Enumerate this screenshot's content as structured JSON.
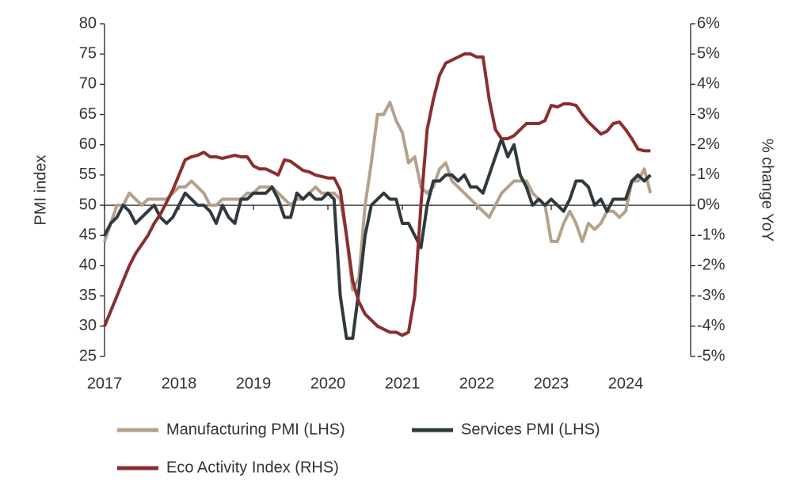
{
  "chart_data": {
    "type": "line",
    "y_label": "PMI index",
    "y2_label": "% change YoY",
    "categories": [
      "2017",
      null,
      null,
      null,
      null,
      null,
      null,
      null,
      null,
      null,
      null,
      null,
      "2018",
      null,
      null,
      null,
      null,
      null,
      null,
      null,
      null,
      null,
      null,
      null,
      "2019",
      null,
      null,
      null,
      null,
      null,
      null,
      null,
      null,
      null,
      null,
      null,
      "2020",
      null,
      null,
      null,
      null,
      null,
      null,
      null,
      null,
      null,
      null,
      null,
      "2021",
      null,
      null,
      null,
      null,
      null,
      null,
      null,
      null,
      null,
      null,
      null,
      "2022",
      null,
      null,
      null,
      null,
      null,
      null,
      null,
      null,
      null,
      null,
      null,
      "2023",
      null,
      null,
      null,
      null,
      null,
      null,
      null,
      null,
      null,
      null,
      null,
      "2024",
      null,
      null,
      null,
      null
    ],
    "ylim": [
      25,
      80
    ],
    "yticks": [
      25,
      30,
      35,
      40,
      45,
      50,
      55,
      60,
      65,
      70,
      75,
      80
    ],
    "y2lim": [
      -5,
      6
    ],
    "y2ticks": [
      {
        "value": -5,
        "label": "-5%"
      },
      {
        "value": -4,
        "label": "-4%"
      },
      {
        "value": -3,
        "label": "-3%"
      },
      {
        "value": -2,
        "label": "-2%"
      },
      {
        "value": -1,
        "label": "-1%"
      },
      {
        "value": 0,
        "label": "0%"
      },
      {
        "value": 1,
        "label": "1%"
      },
      {
        "value": 2,
        "label": "2%"
      },
      {
        "value": 3,
        "label": "3%"
      },
      {
        "value": 4,
        "label": "4%"
      },
      {
        "value": 5,
        "label": "5%"
      },
      {
        "value": 6,
        "label": "6%"
      }
    ],
    "legend": "bottom",
    "series": [
      {
        "name": "Manufacturing PMI (LHS)",
        "color": "#b5a18c",
        "values": [
          44,
          47,
          50,
          50,
          52,
          51,
          50,
          51,
          51,
          51,
          51,
          52,
          53,
          53,
          54,
          53,
          52,
          50,
          50,
          51,
          51,
          51,
          51,
          52,
          52,
          53,
          53,
          53,
          52,
          51,
          50,
          51,
          51,
          52,
          53,
          52,
          52,
          52,
          51,
          45,
          36,
          38,
          50,
          57,
          65,
          65,
          67,
          64,
          62,
          57,
          58,
          53,
          52,
          53,
          56,
          57,
          54,
          53,
          52,
          51,
          50,
          49,
          48,
          50,
          52,
          53,
          54,
          54,
          54,
          52,
          51,
          50,
          44,
          44,
          47,
          49,
          47,
          44,
          47,
          46,
          47,
          49,
          49,
          48,
          49,
          54,
          54,
          56,
          52
        ]
      },
      {
        "name": "Services PMI (LHS)",
        "color": "#2f3a3e",
        "values": [
          45,
          47,
          48,
          50,
          49,
          47,
          48,
          49,
          50,
          48,
          47,
          48,
          50,
          52,
          51,
          50,
          50,
          49,
          47,
          50,
          48,
          47,
          51,
          51,
          52,
          52,
          52,
          53,
          51,
          48,
          48,
          52,
          51,
          52,
          51,
          51,
          52,
          51,
          35,
          28,
          28,
          36,
          45,
          50,
          51,
          52,
          51,
          51,
          47,
          47,
          45,
          43,
          50,
          54,
          54,
          55,
          55,
          54,
          55,
          53,
          53,
          52,
          55,
          58,
          61,
          58,
          60,
          55,
          53,
          50,
          51,
          50,
          51,
          50,
          49,
          51,
          54,
          54,
          53,
          50,
          51,
          49,
          51,
          51,
          51,
          54,
          55,
          54,
          55
        ]
      },
      {
        "name": "Eco Activity Index (RHS)",
        "color": "#8b2e2e",
        "axis": "y2",
        "values": [
          -4,
          -3.5,
          -3,
          -2.5,
          -2,
          -1.6,
          -1.3,
          -1,
          -0.6,
          -0.3,
          0.1,
          0.5,
          1,
          1.5,
          1.6,
          1.65,
          1.75,
          1.6,
          1.6,
          1.55,
          1.6,
          1.65,
          1.6,
          1.6,
          1.3,
          1.2,
          1.2,
          1.1,
          1,
          1.5,
          1.45,
          1.3,
          1.15,
          1.1,
          1,
          0.95,
          0.9,
          0.9,
          0.5,
          -1,
          -2.5,
          -3.2,
          -3.6,
          -3.8,
          -4,
          -4.1,
          -4.2,
          -4.2,
          -4.3,
          -4.2,
          -3,
          0,
          2.5,
          3.5,
          4.3,
          4.7,
          4.8,
          4.9,
          5,
          5,
          4.9,
          4.9,
          3.5,
          2.5,
          2.2,
          2.2,
          2.3,
          2.5,
          2.7,
          2.7,
          2.7,
          2.8,
          3.3,
          3.25,
          3.35,
          3.35,
          3.3,
          3,
          2.75,
          2.55,
          2.35,
          2.45,
          2.7,
          2.75,
          2.5,
          2.2,
          1.85,
          1.8,
          1.8
        ]
      }
    ]
  }
}
